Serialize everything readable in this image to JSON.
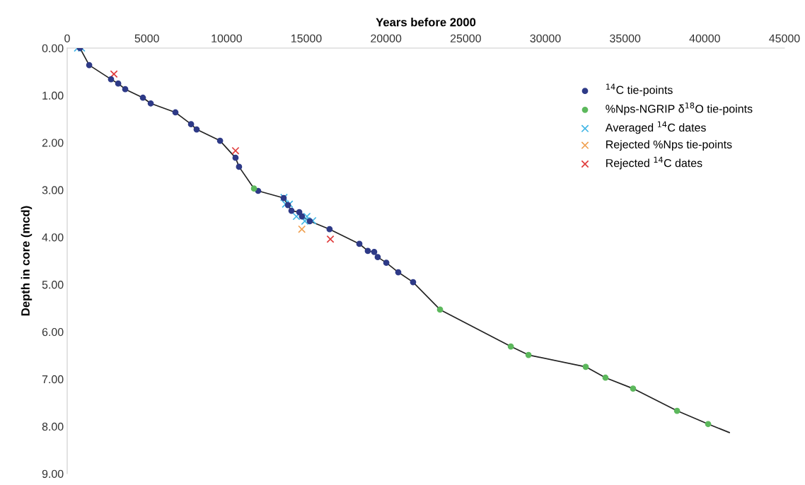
{
  "chart_data": {
    "type": "scatter",
    "xlabel": "Years before 2000",
    "ylabel": "Depth in core (mcd)",
    "xlim": [
      0,
      45000
    ],
    "xticks": [
      0,
      5000,
      10000,
      15000,
      20000,
      25000,
      30000,
      35000,
      40000,
      45000
    ],
    "ylim": [
      9,
      0
    ],
    "yticks": [
      {
        "value": 0,
        "label": "0.00"
      },
      {
        "value": 1,
        "label": "1.00"
      },
      {
        "value": 2,
        "label": "2.00"
      },
      {
        "value": 3,
        "label": "3.00"
      },
      {
        "value": 4,
        "label": "4.00"
      },
      {
        "value": 5,
        "label": "5.00"
      },
      {
        "value": 6,
        "label": "6.00"
      },
      {
        "value": 7,
        "label": "7.00"
      },
      {
        "value": 8,
        "label": "8.00"
      },
      {
        "value": 9,
        "label": "9.00"
      }
    ],
    "grid": false,
    "legend": "top right",
    "series": [
      {
        "type": "line",
        "color": "#222222",
        "marker": "none",
        "line_style": "solid",
        "x": [
          800,
          1380,
          2750,
          3200,
          3640,
          4750,
          5240,
          6790,
          7770,
          8120,
          9590,
          10560,
          10780,
          11720,
          11980,
          13580,
          13850,
          14070,
          14560,
          14730,
          15220,
          16460,
          18330,
          18860,
          19260,
          19480,
          20020,
          20770,
          21700,
          23390,
          27830,
          28940,
          32530,
          33770,
          35500,
          38260,
          40210,
          41540
        ],
        "values": [
          0.0,
          0.36,
          0.66,
          0.75,
          0.87,
          1.05,
          1.17,
          1.36,
          1.61,
          1.72,
          1.96,
          2.32,
          2.51,
          2.97,
          3.02,
          3.17,
          3.32,
          3.44,
          3.47,
          3.56,
          3.66,
          3.83,
          4.14,
          4.29,
          4.31,
          4.42,
          4.54,
          4.74,
          4.95,
          5.53,
          6.31,
          6.49,
          6.74,
          6.97,
          7.2,
          7.67,
          7.95,
          8.13
        ]
      },
      {
        "name": "$^{14}$C tie-points",
        "color": "#2e3a87",
        "marker": "circle",
        "x": [
          800,
          1380,
          2750,
          3200,
          3640,
          4750,
          5240,
          6790,
          7770,
          8120,
          9590,
          10560,
          10780,
          11980,
          13580,
          13850,
          14070,
          14560,
          14730,
          15220,
          16460,
          18330,
          18860,
          19260,
          19480,
          20020,
          20770,
          21700
        ],
        "values": [
          0.0,
          0.36,
          0.66,
          0.75,
          0.87,
          1.05,
          1.17,
          1.36,
          1.61,
          1.72,
          1.96,
          2.32,
          2.51,
          3.02,
          3.17,
          3.32,
          3.44,
          3.47,
          3.56,
          3.66,
          3.83,
          4.14,
          4.29,
          4.31,
          4.42,
          4.54,
          4.74,
          4.95
        ]
      },
      {
        "name": "%Nps-NGRIP δ$^{18}$O tie-points",
        "color": "#5cb85c",
        "marker": "circle",
        "x": [
          11720,
          23390,
          27830,
          28940,
          32530,
          33770,
          35500,
          38260,
          40210
        ],
        "values": [
          2.97,
          5.53,
          6.31,
          6.49,
          6.74,
          6.97,
          7.2,
          7.67,
          7.95
        ]
      },
      {
        "name": "Averaged $^{14}$C dates",
        "color": "#3fb5e5",
        "marker": "cross",
        "x": [
          650,
          900,
          13600,
          13700,
          13940,
          14380,
          15040,
          14910,
          15400
        ],
        "values": [
          0.0,
          0.0,
          3.16,
          3.3,
          3.3,
          3.56,
          3.56,
          3.66,
          3.65
        ]
      },
      {
        "name": "Rejected %Nps tie-points",
        "color": "#f0a050",
        "marker": "cross",
        "x": [
          14720
        ],
        "values": [
          3.83
        ]
      },
      {
        "name": "Rejected $^{14}$C dates",
        "color": "#e03c3c",
        "marker": "cross",
        "x": [
          2930,
          10560,
          16510
        ],
        "values": [
          0.55,
          2.17,
          4.04
        ]
      }
    ]
  }
}
